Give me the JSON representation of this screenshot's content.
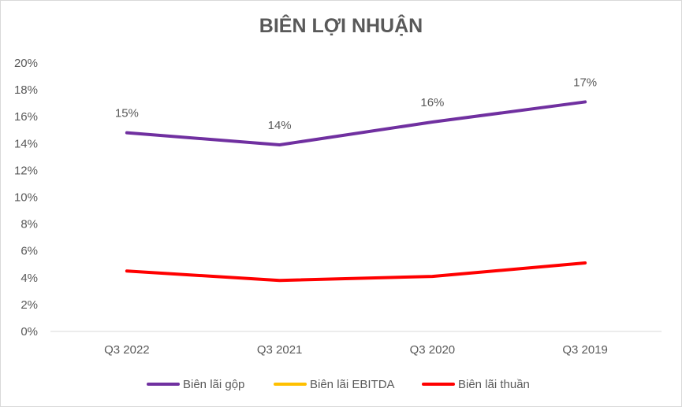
{
  "chart_data": {
    "type": "line",
    "title": "BIÊN LỢI NHUẬN",
    "categories": [
      "Q3 2022",
      "Q3 2021",
      "Q3 2020",
      "Q3 2019"
    ],
    "y_ticks": [
      "0%",
      "2%",
      "4%",
      "6%",
      "8%",
      "10%",
      "12%",
      "14%",
      "16%",
      "18%",
      "20%"
    ],
    "ylim": [
      0,
      20
    ],
    "y_unit": "%",
    "grid": false,
    "legend_position": "bottom",
    "series": [
      {
        "name": "Biên lãi gộp",
        "color": "#7030a0",
        "values": [
          14.8,
          13.9,
          15.6,
          17.1
        ],
        "data_labels": [
          "15%",
          "14%",
          "16%",
          "17%"
        ]
      },
      {
        "name": "Biên lãi EBITDA",
        "color": "#ffc000",
        "values": [
          null,
          null,
          null,
          null
        ],
        "data_labels": []
      },
      {
        "name": "Biên lãi thuần",
        "color": "#ff0000",
        "values": [
          4.5,
          3.8,
          4.1,
          5.1
        ],
        "data_labels": []
      }
    ]
  }
}
